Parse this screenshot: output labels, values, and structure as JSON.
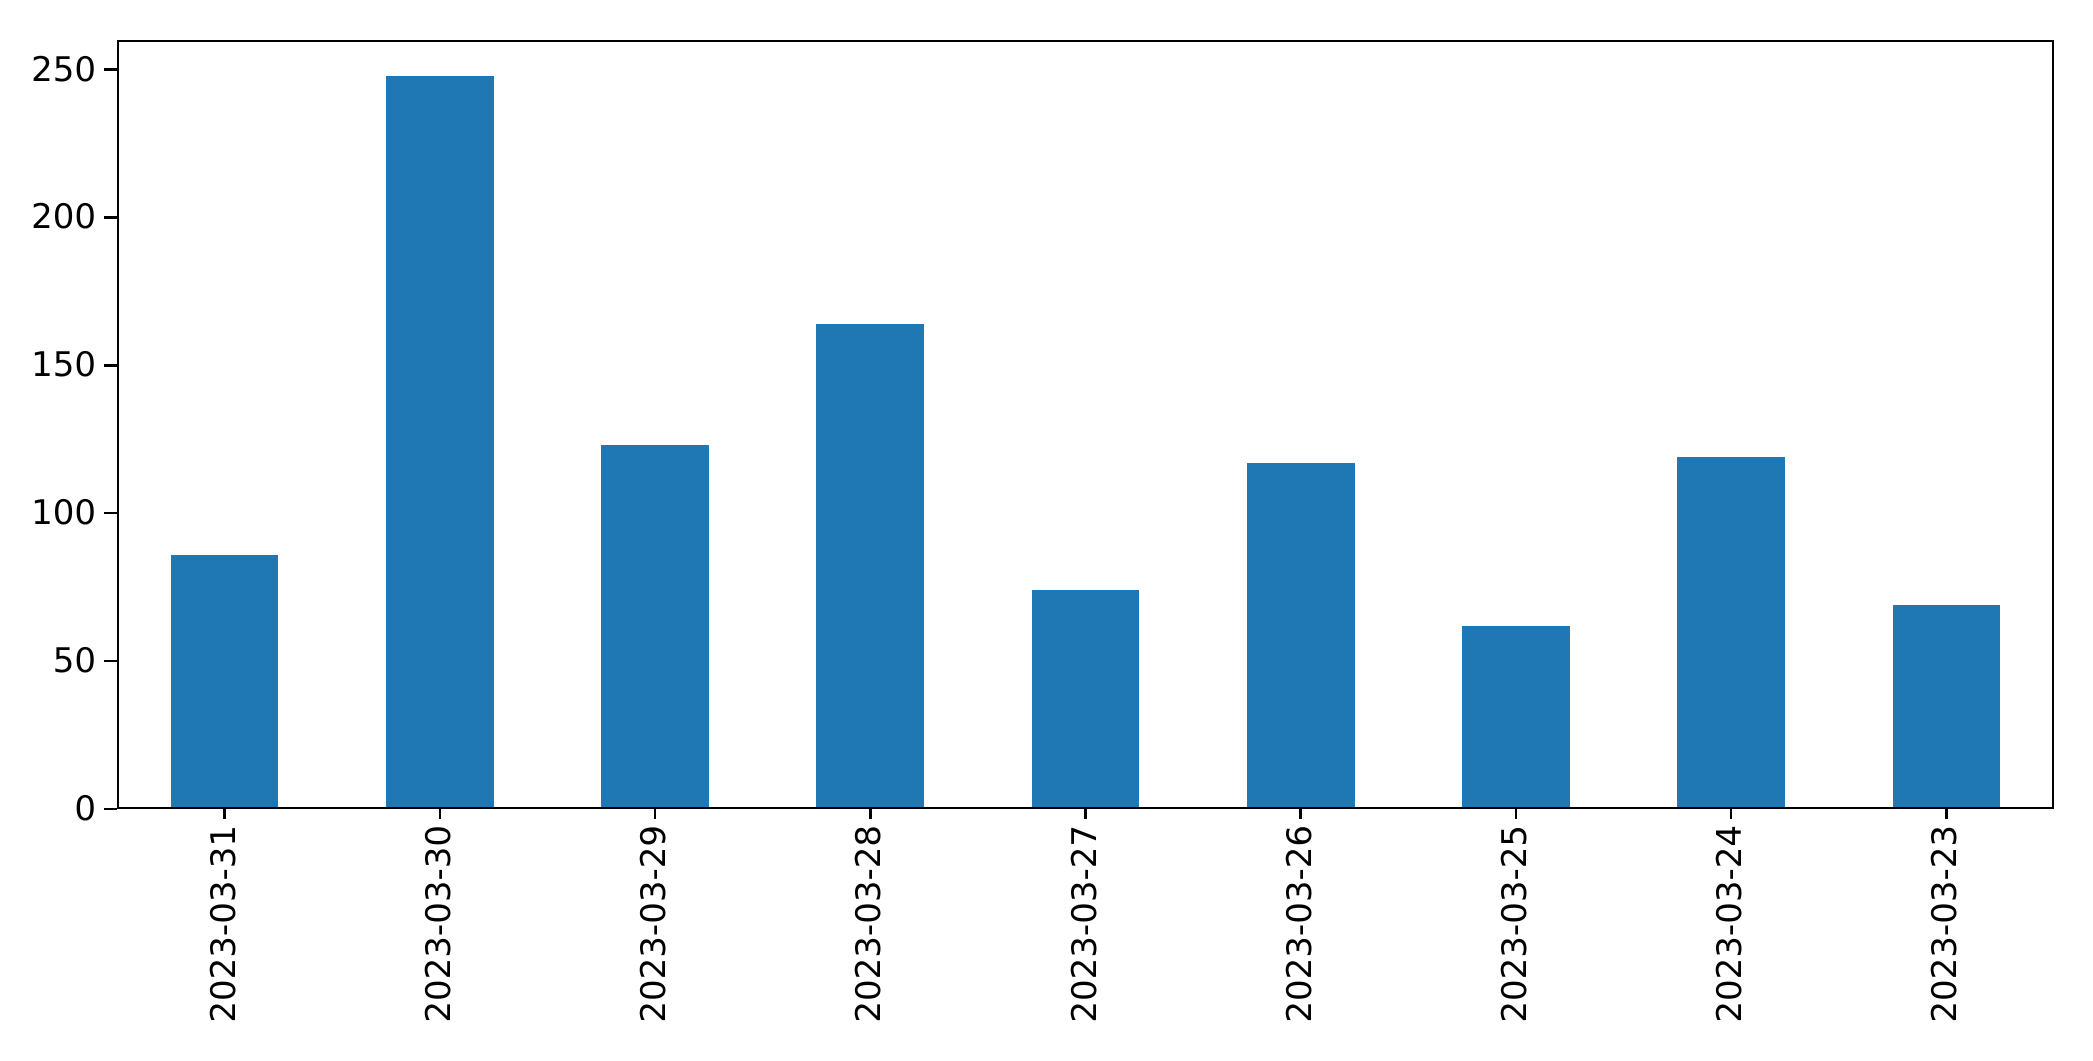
{
  "chart_data": {
    "type": "bar",
    "categories": [
      "2023-03-31",
      "2023-03-30",
      "2023-03-29",
      "2023-03-28",
      "2023-03-27",
      "2023-03-26",
      "2023-03-25",
      "2023-03-24",
      "2023-03-23"
    ],
    "values": [
      86,
      248,
      123,
      164,
      74,
      117,
      62,
      119,
      69
    ],
    "title": "",
    "xlabel": "",
    "ylabel": "",
    "yticks": [
      0,
      50,
      100,
      150,
      200,
      250
    ],
    "ylim": [
      0,
      260
    ],
    "x_tick_rotation_deg": 90,
    "bar_width_fraction": 0.5,
    "grid": false,
    "legend": null
  },
  "colors": {
    "bar": "#1f77b4",
    "spine": "#000000",
    "tick_label": "#000000",
    "background": "#ffffff"
  }
}
